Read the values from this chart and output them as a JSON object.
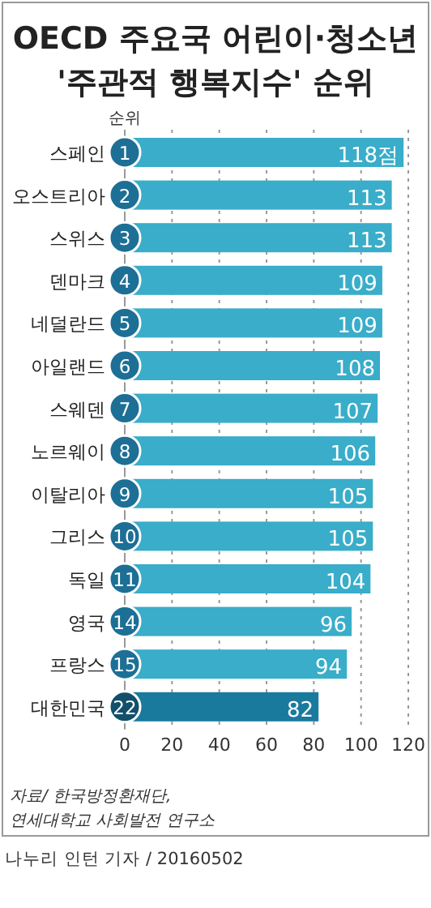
{
  "chart_data": {
    "type": "bar",
    "orientation": "horizontal",
    "title": "OECD 주요국 어린이·청소년",
    "subtitle": "'주관적 행복지수' 순위",
    "categories": [
      "스페인",
      "오스트리아",
      "스위스",
      "덴마크",
      "네덜란드",
      "아일랜드",
      "스웨덴",
      "노르웨이",
      "이탈리아",
      "그리스",
      "독일",
      "영국",
      "프랑스",
      "대한민국"
    ],
    "values": [
      118,
      113,
      113,
      109,
      109,
      108,
      107,
      106,
      105,
      105,
      104,
      96,
      94,
      82
    ],
    "value_labels": [
      "118점",
      "113",
      "113",
      "109",
      "109",
      "108",
      "107",
      "106",
      "105",
      "105",
      "104",
      "96",
      "94",
      "82"
    ],
    "colors": [
      "#39adc9",
      "#39adc9",
      "#39adc9",
      "#39adc9",
      "#39adc9",
      "#39adc9",
      "#39adc9",
      "#39adc9",
      "#39adc9",
      "#39adc9",
      "#39adc9",
      "#39adc9",
      "#39adc9",
      "#1a7a9e"
    ],
    "xlim": [
      0,
      120
    ],
    "xticks": [
      0,
      20,
      40,
      60,
      80,
      100,
      120
    ],
    "grid": "x",
    "annotations": [
      "순위",
      {
        "text": "1",
        "y": "스페인"
      },
      {
        "text": "2",
        "y": "오스트리아"
      },
      {
        "text": "3",
        "y": "스위스"
      },
      {
        "text": "4",
        "y": "덴마크"
      },
      {
        "text": "5",
        "y": "네덜란드"
      },
      {
        "text": "6",
        "y": "아일랜드"
      },
      {
        "text": "7",
        "y": "스웨덴"
      },
      {
        "text": "8",
        "y": "노르웨이"
      },
      {
        "text": "9",
        "y": "이탈리아"
      },
      {
        "text": "10",
        "y": "그리스"
      },
      {
        "text": "11",
        "y": "독일"
      },
      {
        "text": "14",
        "y": "영국"
      },
      {
        "text": "15",
        "y": "프랑스"
      },
      {
        "text": "22",
        "y": "대한민국"
      },
      "자료/ 한국방정환재단,",
      "연세대학교 사회발전 연구소",
      "나누리 인턴 기자 / 20160502"
    ]
  }
}
